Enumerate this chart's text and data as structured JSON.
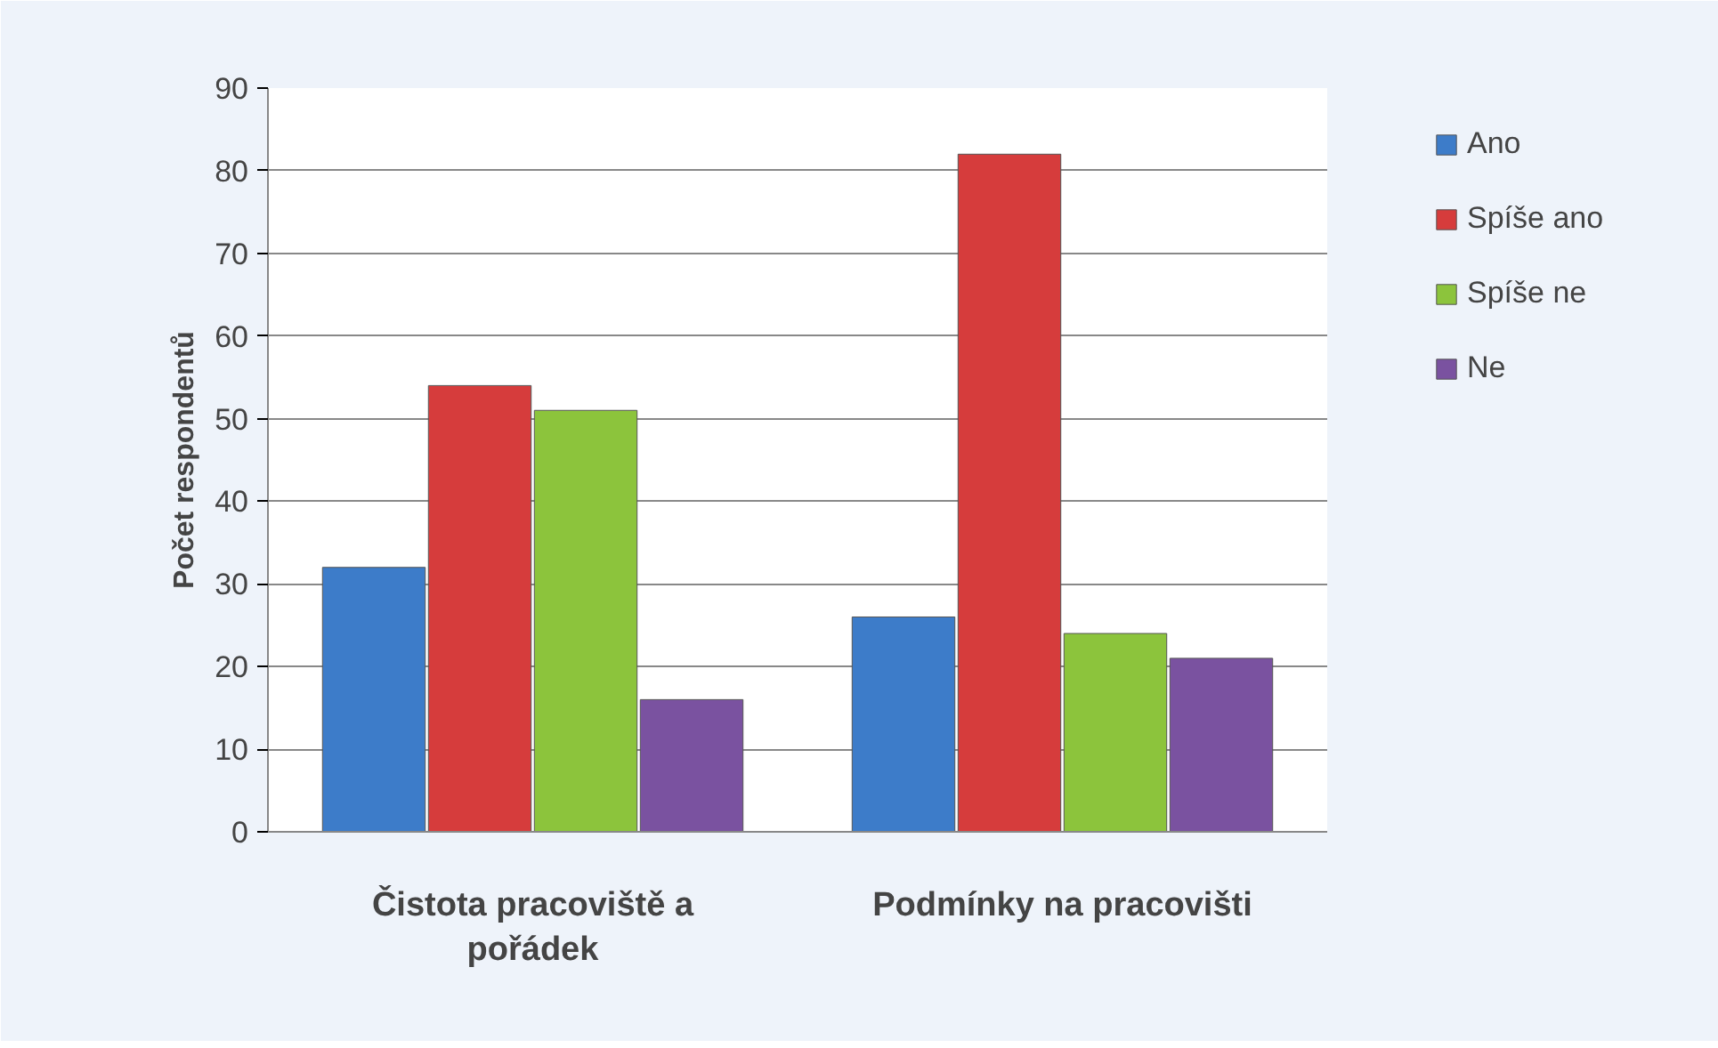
{
  "chart_data": {
    "type": "bar",
    "ylabel": "Počet respondentů",
    "categories": [
      "Čistota pracoviště a pořádek",
      "Podmínky na pracovišti"
    ],
    "series": [
      {
        "name": "Ano",
        "color": "#3d7cc9",
        "values": [
          32,
          26
        ]
      },
      {
        "name": "Spíše ano",
        "color": "#d63c3c",
        "values": [
          54,
          82
        ]
      },
      {
        "name": "Spíše ne",
        "color": "#8cc43c",
        "values": [
          51,
          24
        ]
      },
      {
        "name": "Ne",
        "color": "#7a52a0",
        "values": [
          16,
          21
        ]
      }
    ],
    "ylim": [
      0,
      90
    ],
    "yticks": [
      0,
      10,
      20,
      30,
      40,
      50,
      60,
      70,
      80,
      90
    ],
    "grid": "y",
    "legend": "right"
  }
}
